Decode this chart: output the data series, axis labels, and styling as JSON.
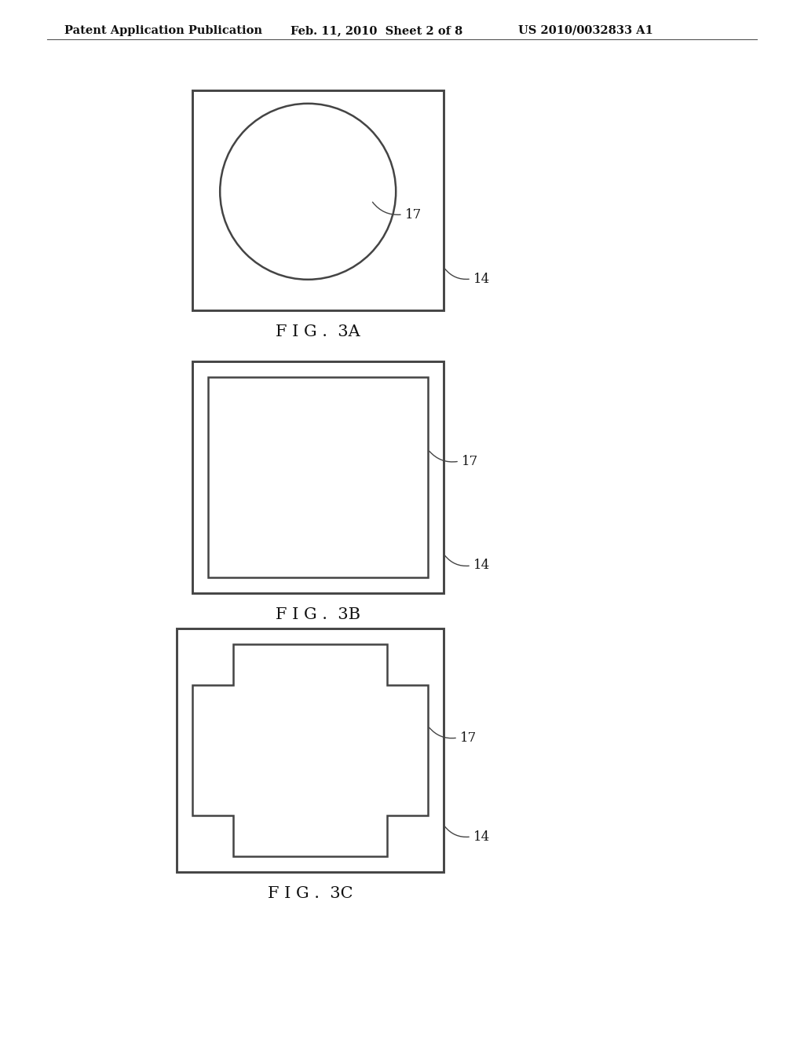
{
  "header_left": "Patent Application Publication",
  "header_mid": "Feb. 11, 2010  Sheet 2 of 8",
  "header_right": "US 2010/0032833 A1",
  "header_fontsize": 10.5,
  "fig_labels": [
    "F I G .  3A",
    "F I G .  3B",
    "F I G .  3C"
  ],
  "background_color": "#ffffff",
  "line_color": "#444444",
  "line_width": 1.8,
  "annotation_fontsize": 12
}
